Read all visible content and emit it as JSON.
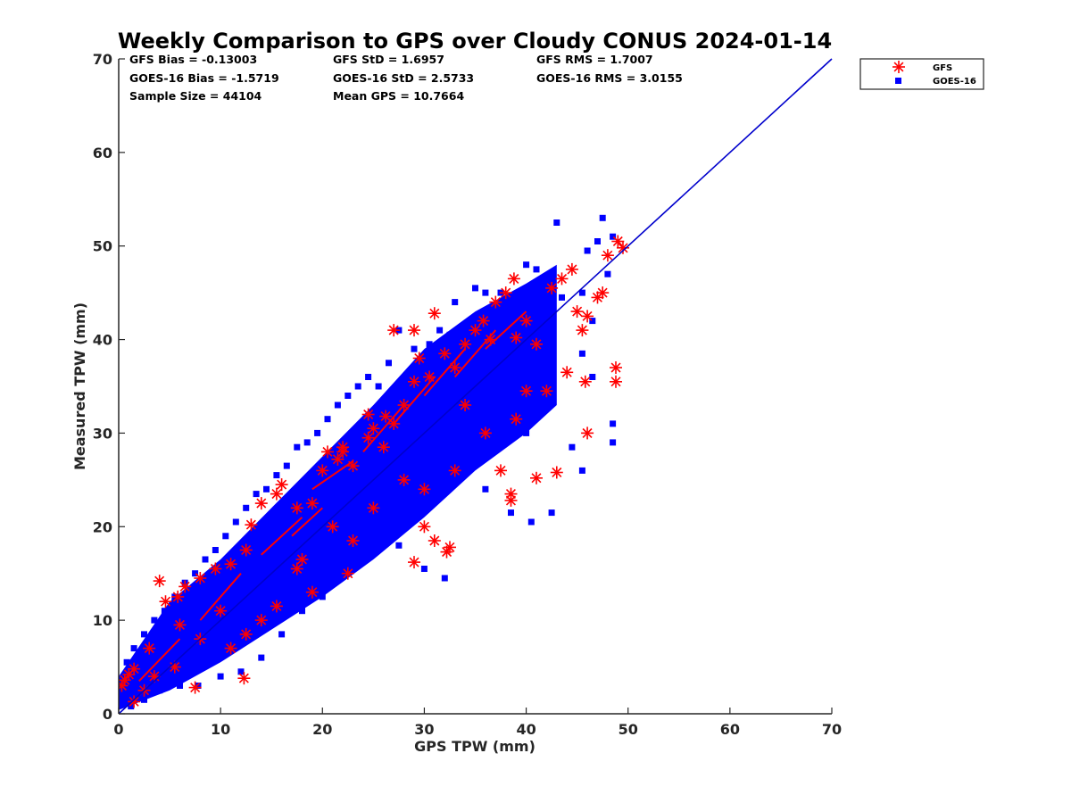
{
  "chart_data": {
    "type": "scatter",
    "title": "Weekly Comparison to GPS over Cloudy CONUS 2024-01-14",
    "xlabel": "GPS TPW (mm)",
    "ylabel": "Measured TPW (mm)",
    "xlim": [
      0,
      70
    ],
    "ylim": [
      0,
      70
    ],
    "xticks": [
      "0",
      "10",
      "20",
      "30",
      "40",
      "50",
      "60",
      "70"
    ],
    "yticks": [
      "0",
      "10",
      "20",
      "30",
      "40",
      "50",
      "60",
      "70"
    ],
    "grid": false,
    "legend_position": "outside-top-right",
    "stats": [
      [
        "GFS Bias = -0.13003",
        "GFS StD = 1.6957",
        "GFS RMS = 1.7007"
      ],
      [
        "GOES-16 Bias = -1.5719",
        "GOES-16 StD = 2.5733",
        "GOES-16 RMS = 3.0155"
      ],
      [
        "Sample Size = 44104",
        "Mean GPS = 10.7664"
      ]
    ],
    "reference_line": {
      "type": "one-to-one",
      "x": [
        0,
        70
      ],
      "y": [
        0,
        70
      ],
      "color": "#0000cc"
    },
    "series": [
      {
        "name": "GFS",
        "marker": "asterisk",
        "color": "#ff0000",
        "points": [
          [
            0.3,
            3
          ],
          [
            0.6,
            3.6
          ],
          [
            1,
            4.2
          ],
          [
            1.5,
            4.8
          ],
          [
            4,
            14.2
          ],
          [
            4.6,
            12
          ],
          [
            5.8,
            12.5
          ],
          [
            6.5,
            13.6
          ],
          [
            8,
            14.5
          ],
          [
            9.5,
            15.5
          ],
          [
            11,
            16
          ],
          [
            12.5,
            17.5
          ],
          [
            13,
            20.2
          ],
          [
            14,
            22.5
          ],
          [
            15.5,
            23.5
          ],
          [
            16,
            24.5
          ],
          [
            17.5,
            22
          ],
          [
            19,
            22.5
          ],
          [
            20.5,
            28
          ],
          [
            21.5,
            27.2
          ],
          [
            22,
            28.5
          ],
          [
            23,
            26.5
          ],
          [
            24.5,
            29.5
          ],
          [
            25,
            30.5
          ],
          [
            26.2,
            31.8
          ],
          [
            27,
            31
          ],
          [
            28,
            33
          ],
          [
            29,
            35.5
          ],
          [
            29.5,
            38
          ],
          [
            30.5,
            36
          ],
          [
            31,
            42.8
          ],
          [
            32,
            38.5
          ],
          [
            33,
            37
          ],
          [
            34,
            39.5
          ],
          [
            35,
            41
          ],
          [
            35.8,
            42
          ],
          [
            36.5,
            40
          ],
          [
            37,
            44
          ],
          [
            38,
            45
          ],
          [
            38.8,
            46.5
          ],
          [
            39,
            40.2
          ],
          [
            40,
            42
          ],
          [
            41,
            39.5
          ],
          [
            42.5,
            45.5
          ],
          [
            43.5,
            46.5
          ],
          [
            44.5,
            47.5
          ],
          [
            45,
            43
          ],
          [
            45.5,
            41
          ],
          [
            46,
            42.5
          ],
          [
            47,
            44.5
          ],
          [
            47.5,
            45
          ],
          [
            48,
            49
          ],
          [
            49,
            50.5
          ],
          [
            49.5,
            49.8
          ],
          [
            44,
            36.5
          ],
          [
            45.8,
            35.5
          ],
          [
            48.8,
            37
          ],
          [
            48.8,
            35.5
          ],
          [
            46,
            30
          ],
          [
            43,
            25.8
          ],
          [
            41,
            25.2
          ],
          [
            38.5,
            23.5
          ],
          [
            38.5,
            22.8
          ],
          [
            37.5,
            26
          ],
          [
            32.5,
            17.8
          ],
          [
            32.2,
            17.3
          ],
          [
            31,
            18.5
          ],
          [
            29,
            16.2
          ],
          [
            30,
            20
          ],
          [
            27,
            41
          ],
          [
            29,
            41
          ],
          [
            30,
            24
          ],
          [
            26,
            28.5
          ],
          [
            24.5,
            32
          ],
          [
            22,
            28
          ],
          [
            20,
            26
          ],
          [
            25,
            22
          ],
          [
            23,
            18.5
          ],
          [
            22.5,
            15
          ],
          [
            19,
            13
          ],
          [
            17.5,
            15.5
          ],
          [
            15.5,
            11.5
          ],
          [
            14,
            10
          ],
          [
            12.5,
            8.5
          ],
          [
            11,
            7
          ],
          [
            12.3,
            3.8
          ],
          [
            7.5,
            2.8
          ],
          [
            5.5,
            5
          ],
          [
            3.5,
            4
          ],
          [
            2.5,
            2.5
          ],
          [
            1.5,
            1.3
          ],
          [
            3,
            7
          ],
          [
            6,
            9.5
          ],
          [
            8,
            8
          ],
          [
            10,
            11
          ],
          [
            18,
            16.5
          ],
          [
            21,
            20
          ],
          [
            34,
            33
          ],
          [
            36,
            30
          ],
          [
            40,
            34.5
          ],
          [
            42,
            34.5
          ],
          [
            39,
            31.5
          ],
          [
            33,
            26
          ],
          [
            28,
            25
          ]
        ]
      },
      {
        "name": "GOES-16",
        "marker": "square",
        "color": "#0000ff",
        "points": [
          [
            43,
            52.5
          ],
          [
            47.5,
            53
          ],
          [
            48.5,
            51
          ],
          [
            47,
            50.5
          ],
          [
            46,
            49.5
          ],
          [
            48,
            47
          ],
          [
            45.5,
            45
          ],
          [
            46.5,
            42
          ],
          [
            43.5,
            44.5
          ],
          [
            42,
            45.5
          ],
          [
            41,
            47.5
          ],
          [
            40,
            48
          ],
          [
            39,
            44
          ],
          [
            37.5,
            45
          ],
          [
            36,
            45
          ],
          [
            35,
            45.5
          ],
          [
            34.5,
            42
          ],
          [
            33,
            44
          ],
          [
            32.5,
            40.5
          ],
          [
            31.5,
            41
          ],
          [
            30.5,
            39.5
          ],
          [
            29,
            39
          ],
          [
            27.5,
            41
          ],
          [
            26.5,
            37.5
          ],
          [
            25.5,
            35
          ],
          [
            24.5,
            36
          ],
          [
            23.5,
            35
          ],
          [
            22.5,
            34
          ],
          [
            21.5,
            33
          ],
          [
            20.5,
            31.5
          ],
          [
            19.5,
            30
          ],
          [
            18.5,
            29
          ],
          [
            17.5,
            28.5
          ],
          [
            16.5,
            26.5
          ],
          [
            15.5,
            25.5
          ],
          [
            14.5,
            24
          ],
          [
            13.5,
            23.5
          ],
          [
            12.5,
            22
          ],
          [
            11.5,
            20.5
          ],
          [
            10.5,
            19
          ],
          [
            9.5,
            17.5
          ],
          [
            8.5,
            16.5
          ],
          [
            7.5,
            15
          ],
          [
            6.5,
            14
          ],
          [
            5.5,
            12.5
          ],
          [
            4.5,
            11
          ],
          [
            3.5,
            10
          ],
          [
            2.5,
            8.5
          ],
          [
            1.5,
            7
          ],
          [
            0.8,
            5.5
          ],
          [
            45.5,
            38.5
          ],
          [
            46.5,
            36
          ],
          [
            48.5,
            31
          ],
          [
            48.5,
            29
          ],
          [
            45.5,
            26
          ],
          [
            42.5,
            21.5
          ],
          [
            40.5,
            20.5
          ],
          [
            38.5,
            21.5
          ],
          [
            36,
            24
          ],
          [
            34.5,
            26.5
          ],
          [
            32,
            14.5
          ],
          [
            30,
            15.5
          ],
          [
            27.5,
            18
          ],
          [
            25,
            19.5
          ],
          [
            22.5,
            16
          ],
          [
            20,
            12.5
          ],
          [
            18,
            11
          ],
          [
            16,
            8.5
          ],
          [
            14,
            6
          ],
          [
            12,
            4.5
          ],
          [
            10,
            4
          ],
          [
            7.8,
            3
          ],
          [
            6,
            3
          ],
          [
            4,
            2.5
          ],
          [
            2.5,
            1.5
          ],
          [
            1.2,
            0.8
          ],
          [
            44.5,
            28.5
          ],
          [
            40,
            30
          ],
          [
            37,
            32
          ],
          [
            33,
            29.5
          ]
        ]
      }
    ]
  }
}
